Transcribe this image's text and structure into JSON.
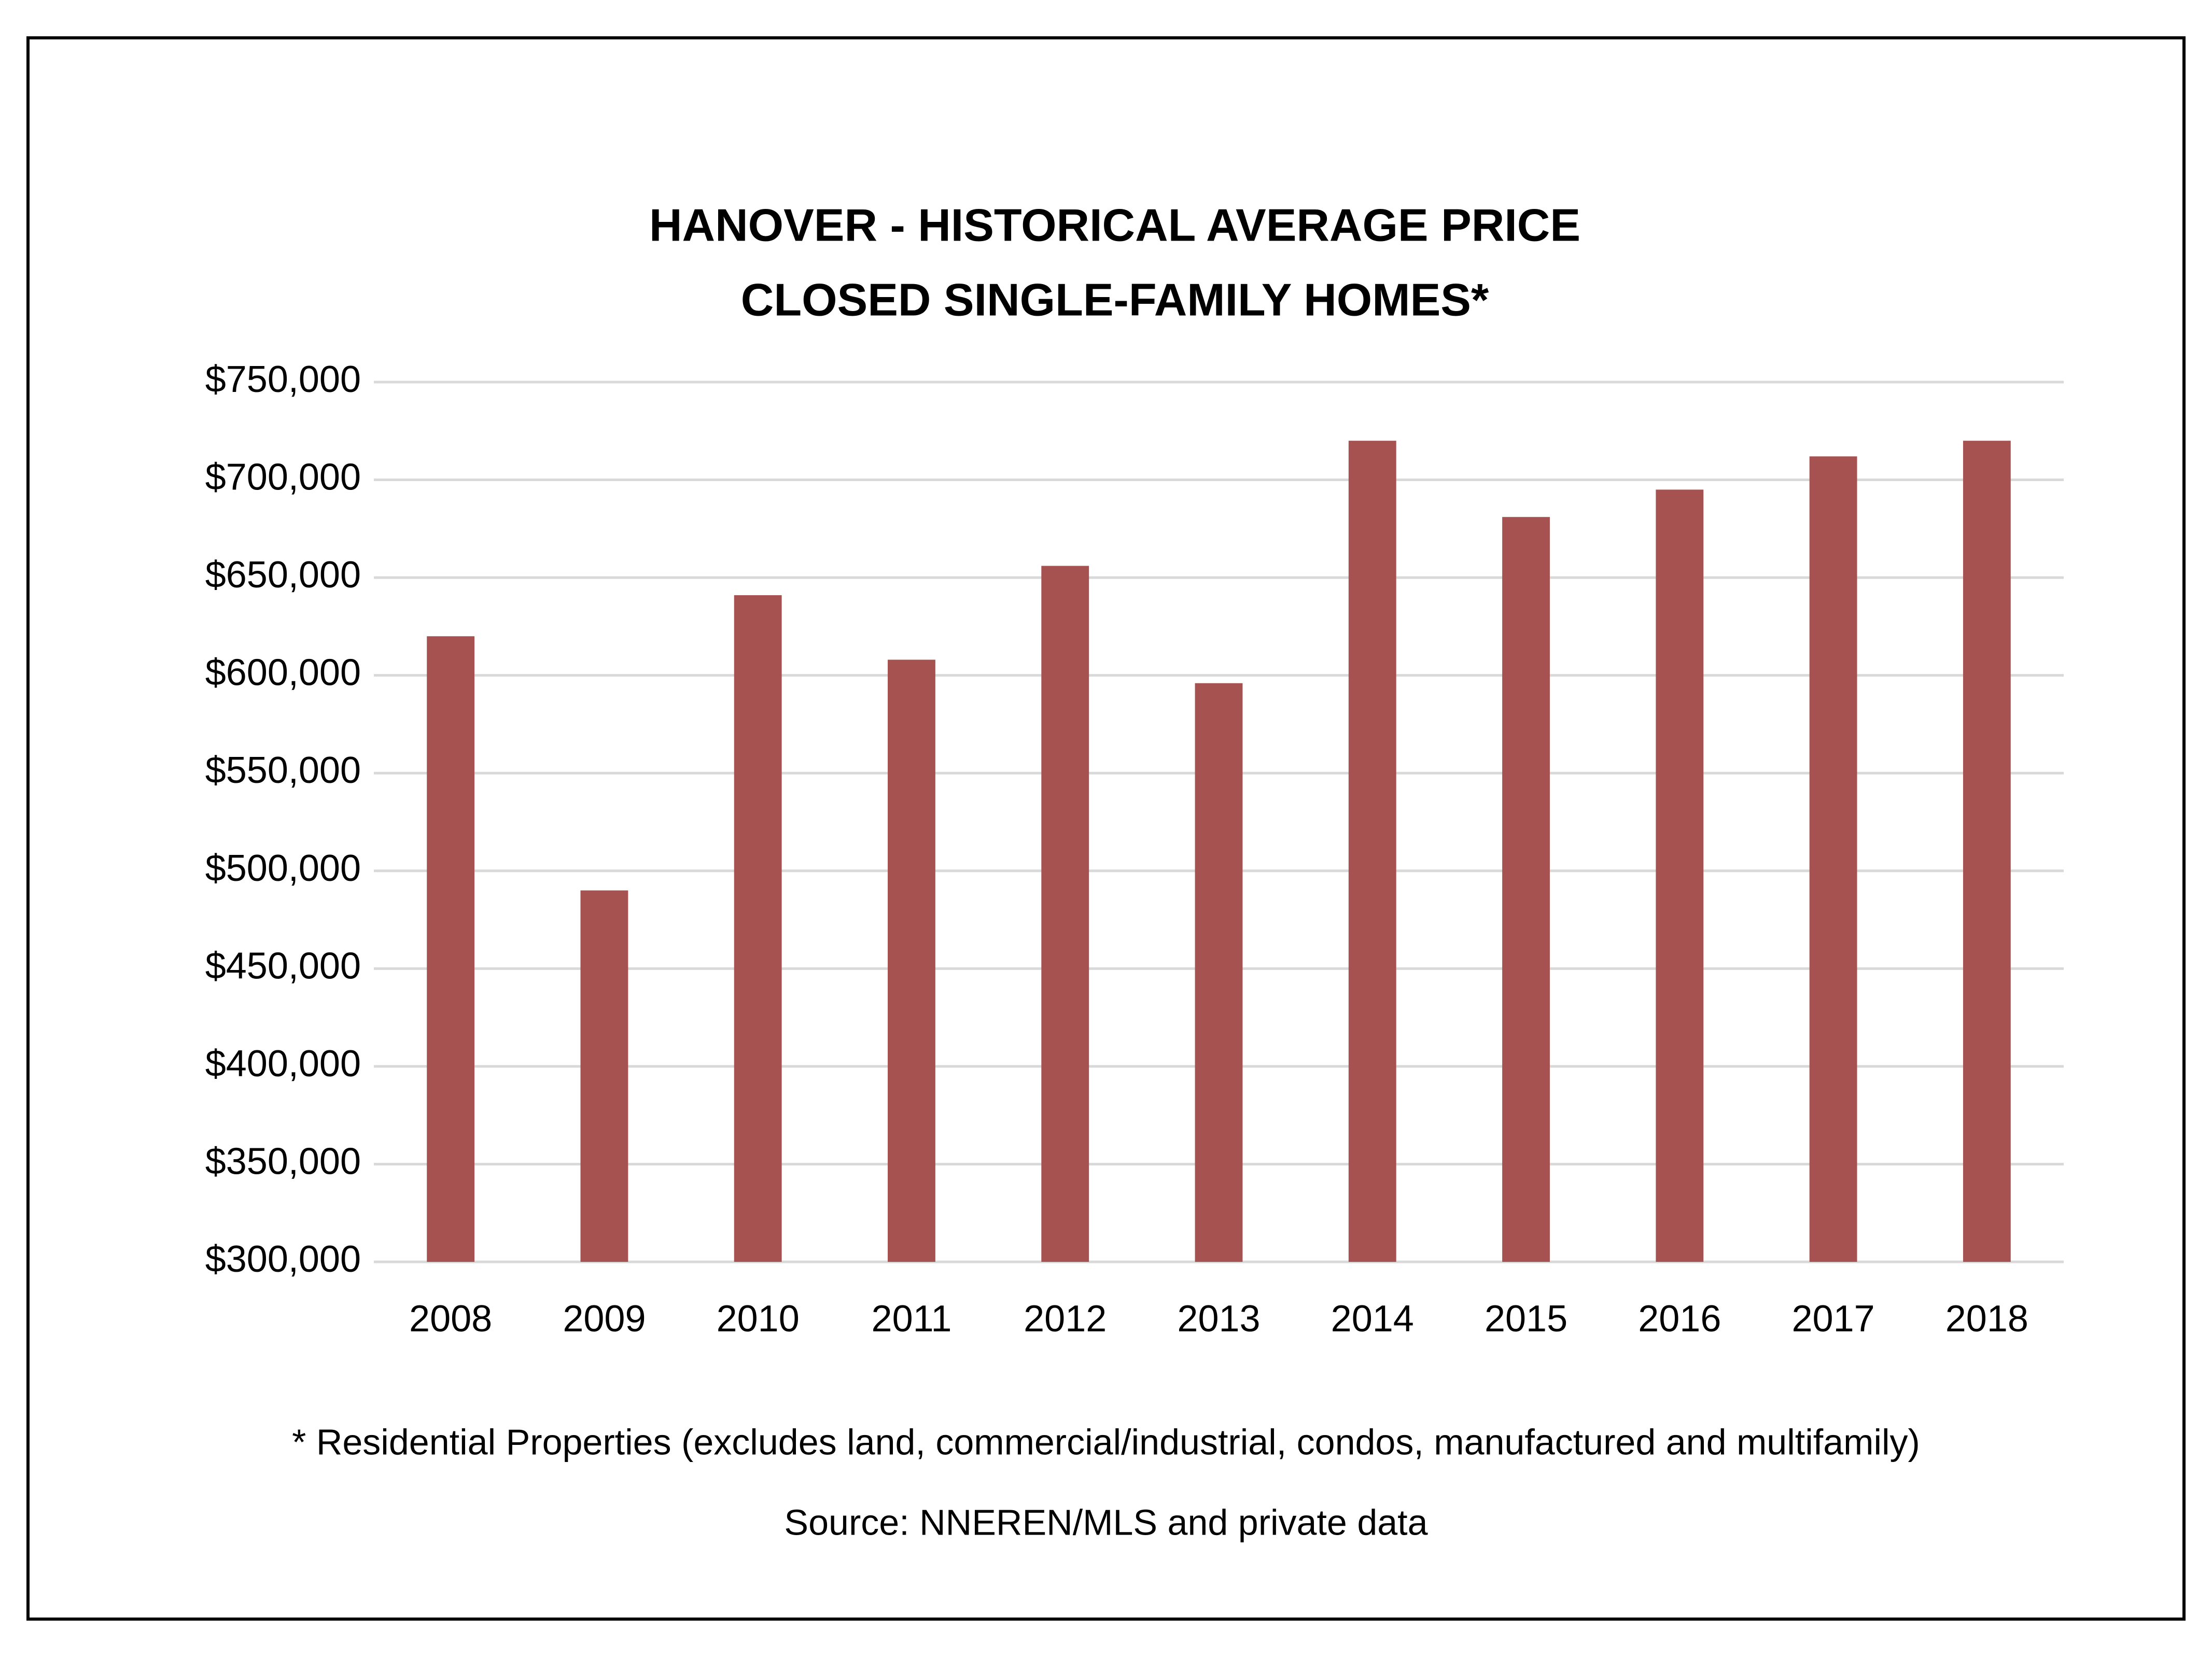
{
  "chart_data": {
    "type": "bar",
    "title": "HANOVER - HISTORICAL AVERAGE PRICE",
    "subtitle": "CLOSED SINGLE-FAMILY HOMES*",
    "categories": [
      "2008",
      "2009",
      "2010",
      "2011",
      "2012",
      "2013",
      "2014",
      "2015",
      "2016",
      "2017",
      "2018"
    ],
    "values": [
      620000,
      490000,
      641000,
      608000,
      656000,
      596000,
      720000,
      681000,
      695000,
      712000,
      720000
    ],
    "color": "#a65250",
    "ylim": [
      300000,
      750000
    ],
    "yticks": [
      {
        "value": 300000,
        "label": "$300,000"
      },
      {
        "value": 350000,
        "label": "$350,000"
      },
      {
        "value": 400000,
        "label": "$400,000"
      },
      {
        "value": 450000,
        "label": "$450,000"
      },
      {
        "value": 500000,
        "label": "$500,000"
      },
      {
        "value": 550000,
        "label": "$550,000"
      },
      {
        "value": 600000,
        "label": "$600,000"
      },
      {
        "value": 650000,
        "label": "$650,000"
      },
      {
        "value": 700000,
        "label": "$700,000"
      },
      {
        "value": 750000,
        "label": "$750,000"
      }
    ],
    "grid": true,
    "footnote": "* Residential Properties (excludes land, commercial/industrial, condos, manufactured and multifamily)",
    "source": "Source: NNEREN/MLS and private data"
  }
}
